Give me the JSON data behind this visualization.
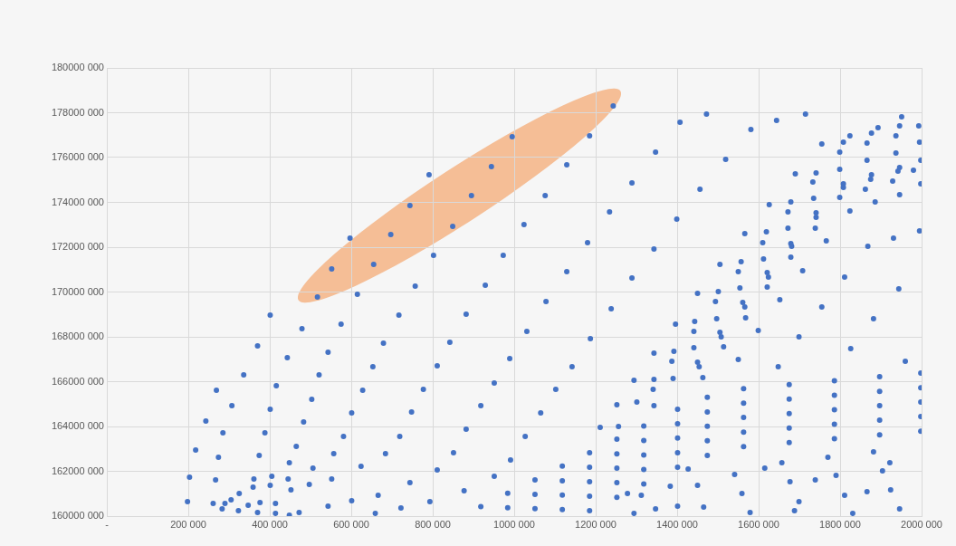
{
  "chart_data": {
    "type": "scatter",
    "marker": "circle",
    "grid": true,
    "legend": false,
    "xlim": [
      0,
      2000000
    ],
    "xticks": [
      {
        "value": 0,
        "label": "-"
      },
      {
        "value": 200000,
        "label": "200 000"
      },
      {
        "value": 400000,
        "label": "400 000"
      },
      {
        "value": 600000,
        "label": "600 000"
      },
      {
        "value": 800000,
        "label": "800 000"
      },
      {
        "value": 1000000,
        "label": "1000 000"
      },
      {
        "value": 1200000,
        "label": "1200 000"
      },
      {
        "value": 1400000,
        "label": "1400 000"
      },
      {
        "value": 1600000,
        "label": "1600 000"
      },
      {
        "value": 1800000,
        "label": "1800 000"
      },
      {
        "value": 2000000,
        "label": "2000 000"
      }
    ],
    "ylim": [
      160000000,
      180000000
    ],
    "yticks": [
      {
        "value": 160000000,
        "label": "160000 000"
      },
      {
        "value": 162000000,
        "label": "162000 000"
      },
      {
        "value": 164000000,
        "label": "164000 000"
      },
      {
        "value": 166000000,
        "label": "166000 000"
      },
      {
        "value": 168000000,
        "label": "168000 000"
      },
      {
        "value": 170000000,
        "label": "170000 000"
      },
      {
        "value": 172000000,
        "label": "172000 000"
      },
      {
        "value": 174000000,
        "label": "174000 000"
      },
      {
        "value": 176000000,
        "label": "176000 000"
      },
      {
        "value": 178000000,
        "label": "178000 000"
      },
      {
        "value": 180000000,
        "label": "180000 000"
      }
    ],
    "series": [
      {
        "color": "#4472c4",
        "x": [
          517000,
          552000,
          597000,
          655000,
          697000,
          744000,
          791000,
          849000,
          895000,
          944000,
          995000,
          1185000,
          1243000,
          802000,
          973000,
          757000,
          929000,
          615000,
          401000,
          717000,
          882000,
          479000,
          575000,
          370000,
          679000,
          842000,
          443000,
          543000,
          989000,
          653000,
          811000,
          336000,
          521000,
          951000,
          269000,
          416000,
          628000,
          777000,
          307000,
          401000,
          503000,
          601000,
          748000,
          918000,
          243000,
          483000,
          285000,
          388000,
          581000,
          719000,
          882000,
          218000,
          274000,
          374000,
          465000,
          557000,
          684000,
          851000,
          448000,
          506000,
          624000,
          811000,
          991000,
          203000,
          267000,
          361000,
          405000,
          445000,
          552000,
          744000,
          951000,
          359000,
          401000,
          452000,
          497000,
          877000,
          198000,
          261000,
          325000,
          347000,
          376000,
          414000,
          543000,
          601000,
          666000,
          793000,
          290000,
          305000,
          283000,
          323000,
          370000,
          414000,
          472000,
          659000,
          722000,
          448000,
          1407000,
          1472000,
          1644000,
          1715000,
          1581000,
          1347000,
          1519000,
          1129000,
          1289000,
          1456000,
          1076000,
          1234000,
          1399000,
          1024000,
          1180000,
          1343000,
          1129000,
          1289000,
          1078000,
          1238000,
          1031000,
          1187000,
          1142000,
          1102000,
          1065000,
          1027000,
          1690000,
          1741000,
          1755000,
          1808000,
          1824000,
          1866000,
          1877000,
          1893000,
          1937000,
          1946000,
          1951000,
          1993000,
          1995000,
          1998000,
          1980000,
          1998000,
          1946000,
          1942000,
          1937000,
          1929000,
          1946000,
          1866000,
          1877000,
          1875000,
          1862000,
          1886000,
          1799000,
          1799000,
          1808000,
          1808000,
          1799000,
          1824000,
          1733000,
          1735000,
          1741000,
          1741000,
          1739000,
          1766000,
          1679000,
          1672000,
          1672000,
          1679000,
          1681000,
          1679000,
          1626000,
          1619000,
          1610000,
          1612000,
          1621000,
          1624000,
          1621000,
          1708000,
          1566000,
          1557000,
          1550000,
          1505000,
          1554000,
          1501000,
          1450000,
          1494000,
          1561000,
          1566000,
          1568000,
          1497000,
          1652000,
          1755000,
          1811000,
          1868000,
          1931000,
          1995000,
          1944000,
          1882000,
          1443000,
          1441000,
          1505000,
          1508000,
          1599000,
          1396000,
          1441000,
          1514000,
          1699000,
          1392000,
          1343000,
          1387000,
          1450000,
          1454000,
          1463000,
          1550000,
          1648000,
          1826000,
          1960000,
          1294000,
          1343000,
          1390000,
          1341000,
          1301000,
          1252000,
          1343000,
          1211000,
          1256000,
          1831000,
          1946000,
          1866000,
          1924000,
          1811000,
          1739000,
          1677000,
          1699000,
          1688000,
          1790000,
          1904000,
          1922000,
          1615000,
          1657000,
          1770000,
          1882000,
          1579000,
          1559000,
          1541000,
          1465000,
          1450000,
          1401000,
          1383000,
          1347000,
          1294000,
          1312000,
          1278000,
          1427000,
          918000,
          984000,
          1051000,
          1118000,
          1185000,
          1252000,
          1318000,
          1401000,
          1474000,
          1563000,
          1675000,
          1786000,
          1897000,
          1998000,
          984000,
          1051000,
          1118000,
          1185000,
          1252000,
          1318000,
          1401000,
          1474000,
          1563000,
          1675000,
          1786000,
          1897000,
          1998000,
          1051000,
          1118000,
          1185000,
          1252000,
          1318000,
          1401000,
          1474000,
          1563000,
          1675000,
          1786000,
          1897000,
          1998000,
          1118000,
          1185000,
          1252000,
          1318000,
          1401000,
          1474000,
          1563000,
          1675000,
          1786000,
          1897000,
          1998000,
          1185000,
          1252000,
          1318000,
          1401000,
          1474000,
          1563000,
          1675000,
          1786000,
          1897000,
          1998000
        ],
        "values": [
          169780000,
          171030000,
          172400000,
          171230000,
          172570000,
          173860000,
          175230000,
          172930000,
          174300000,
          175600000,
          176930000,
          176970000,
          178300000,
          171640000,
          171640000,
          170260000,
          170300000,
          169900000,
          168970000,
          168970000,
          169010000,
          168360000,
          168570000,
          167600000,
          167720000,
          167760000,
          167070000,
          167310000,
          167030000,
          166670000,
          166710000,
          166300000,
          166300000,
          165940000,
          165620000,
          165820000,
          165620000,
          165660000,
          164930000,
          164770000,
          165210000,
          164610000,
          164650000,
          164930000,
          164240000,
          164200000,
          163720000,
          163720000,
          163560000,
          163560000,
          163880000,
          162950000,
          162630000,
          162710000,
          163110000,
          162790000,
          162790000,
          162830000,
          162380000,
          162140000,
          162220000,
          162060000,
          162510000,
          161740000,
          161620000,
          161660000,
          161780000,
          161660000,
          161660000,
          161490000,
          161780000,
          161290000,
          161370000,
          161170000,
          161410000,
          161130000,
          160650000,
          160570000,
          161010000,
          160480000,
          160610000,
          160570000,
          160440000,
          160690000,
          160930000,
          160650000,
          160570000,
          160730000,
          160320000,
          160240000,
          160160000,
          160120000,
          160160000,
          160120000,
          160360000,
          160040000,
          177580000,
          177940000,
          177660000,
          177940000,
          177250000,
          176240000,
          175920000,
          175680000,
          174870000,
          174590000,
          174300000,
          173580000,
          173250000,
          173010000,
          172200000,
          171920000,
          170910000,
          170630000,
          169580000,
          169250000,
          168240000,
          167920000,
          166670000,
          165660000,
          164610000,
          163560000,
          175270000,
          175310000,
          176610000,
          176690000,
          176970000,
          176650000,
          177090000,
          177330000,
          176970000,
          177410000,
          177820000,
          177410000,
          176690000,
          175880000,
          175430000,
          174830000,
          175560000,
          175390000,
          176200000,
          174950000,
          174340000,
          175880000,
          175230000,
          175030000,
          174590000,
          174020000,
          176240000,
          175470000,
          174830000,
          174670000,
          174220000,
          173620000,
          174910000,
          174180000,
          173540000,
          173330000,
          172850000,
          172280000,
          174020000,
          173580000,
          172850000,
          172160000,
          172040000,
          171560000,
          173900000,
          172690000,
          172200000,
          171470000,
          170870000,
          170670000,
          170220000,
          170950000,
          172610000,
          171350000,
          170910000,
          171230000,
          170180000,
          170020000,
          169940000,
          169580000,
          169540000,
          169330000,
          168850000,
          168810000,
          169660000,
          169330000,
          170670000,
          172040000,
          172400000,
          172730000,
          170140000,
          168810000,
          168690000,
          168240000,
          168200000,
          168000000,
          168280000,
          168570000,
          167520000,
          167560000,
          168000000,
          167350000,
          167270000,
          166910000,
          166870000,
          166670000,
          166180000,
          166990000,
          166670000,
          167470000,
          166910000,
          166060000,
          166100000,
          166140000,
          165660000,
          165090000,
          164970000,
          164930000,
          163960000,
          164000000,
          160120000,
          160320000,
          161090000,
          161170000,
          160930000,
          161620000,
          161540000,
          160650000,
          160240000,
          161820000,
          162020000,
          162380000,
          162140000,
          162380000,
          162630000,
          162870000,
          160160000,
          161010000,
          161860000,
          160400000,
          161370000,
          160440000,
          161330000,
          160320000,
          160120000,
          160930000,
          161010000,
          162100000,
          160420000,
          161020000,
          161620000,
          162230000,
          162830000,
          163430000,
          164020000,
          164770000,
          165300000,
          165690000,
          165870000,
          166040000,
          166220000,
          166380000,
          160370000,
          160970000,
          161580000,
          162180000,
          162780000,
          163370000,
          164120000,
          164650000,
          165040000,
          165220000,
          165390000,
          165570000,
          165730000,
          160330000,
          160940000,
          161540000,
          162140000,
          162730000,
          163480000,
          164010000,
          164400000,
          164580000,
          164750000,
          164930000,
          165090000,
          160290000,
          160890000,
          161490000,
          162080000,
          162830000,
          163360000,
          163750000,
          163930000,
          164100000,
          164280000,
          164440000,
          160240000,
          160840000,
          161430000,
          162180000,
          162710000,
          163100000,
          163280000,
          163450000,
          163630000,
          163790000
        ]
      }
    ]
  }
}
